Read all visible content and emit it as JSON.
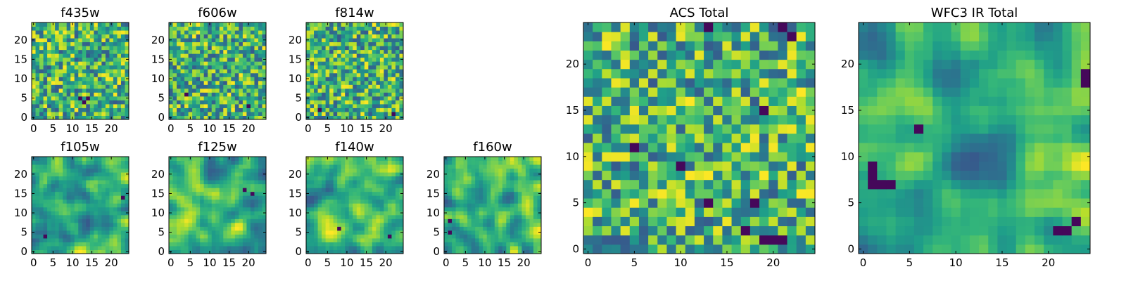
{
  "chart_data": [
    {
      "type": "heatmap",
      "title": "f435w",
      "x_ticks": [
        0,
        5,
        10,
        15,
        20
      ],
      "y_ticks": [
        0,
        5,
        10,
        15,
        20
      ],
      "xlim": [
        -0.5,
        24.5
      ],
      "ylim": [
        -0.5,
        24.5
      ],
      "grid_size": 25,
      "colormap": "viridis",
      "smoothness": 0,
      "seed": 11,
      "dark_spots": [
        [
          12,
          5
        ],
        [
          13,
          4
        ],
        [
          14,
          5
        ]
      ]
    },
    {
      "type": "heatmap",
      "title": "f606w",
      "x_ticks": [
        0,
        5,
        10,
        15,
        20
      ],
      "y_ticks": [
        0,
        5,
        10,
        15,
        20
      ],
      "xlim": [
        -0.5,
        24.5
      ],
      "ylim": [
        -0.5,
        24.5
      ],
      "grid_size": 25,
      "colormap": "viridis",
      "smoothness": 0,
      "seed": 23,
      "dark_spots": [
        [
          4,
          6
        ],
        [
          20,
          3
        ]
      ]
    },
    {
      "type": "heatmap",
      "title": "f814w",
      "x_ticks": [
        0,
        5,
        10,
        15,
        20
      ],
      "y_ticks": [
        0,
        5,
        10,
        15,
        20
      ],
      "xlim": [
        -0.5,
        24.5
      ],
      "ylim": [
        -0.5,
        24.5
      ],
      "grid_size": 25,
      "colormap": "viridis",
      "smoothness": 0,
      "seed": 37,
      "dark_spots": [
        [
          3,
          2
        ],
        [
          22,
          1
        ]
      ]
    },
    {
      "type": "heatmap",
      "title": "f105w",
      "x_ticks": [
        0,
        5,
        10,
        15,
        20
      ],
      "y_ticks": [
        0,
        5,
        10,
        15,
        20
      ],
      "xlim": [
        -0.5,
        24.5
      ],
      "ylim": [
        -0.5,
        24.5
      ],
      "grid_size": 25,
      "colormap": "viridis",
      "smoothness": 1,
      "seed": 41,
      "dark_spots": [
        [
          3,
          4
        ],
        [
          23,
          14
        ]
      ]
    },
    {
      "type": "heatmap",
      "title": "f125w",
      "x_ticks": [
        0,
        5,
        10,
        15,
        20
      ],
      "y_ticks": [
        0,
        5,
        10,
        15,
        20
      ],
      "xlim": [
        -0.5,
        24.5
      ],
      "ylim": [
        -0.5,
        24.5
      ],
      "grid_size": 25,
      "colormap": "viridis",
      "smoothness": 1,
      "seed": 53,
      "dark_spots": [
        [
          19,
          16
        ],
        [
          21,
          15
        ]
      ]
    },
    {
      "type": "heatmap",
      "title": "f140w",
      "x_ticks": [
        0,
        5,
        10,
        15,
        20
      ],
      "y_ticks": [
        0,
        5,
        10,
        15,
        20
      ],
      "xlim": [
        -0.5,
        24.5
      ],
      "ylim": [
        -0.5,
        24.5
      ],
      "grid_size": 25,
      "colormap": "viridis",
      "smoothness": 1,
      "seed": 67,
      "dark_spots": [
        [
          8,
          6
        ],
        [
          21,
          4
        ]
      ]
    },
    {
      "type": "heatmap",
      "title": "f160w",
      "x_ticks": [
        0,
        5,
        10,
        15,
        20
      ],
      "y_ticks": [
        0,
        5,
        10,
        15,
        20
      ],
      "xlim": [
        -0.5,
        24.5
      ],
      "ylim": [
        -0.5,
        24.5
      ],
      "grid_size": 25,
      "colormap": "viridis",
      "smoothness": 1,
      "seed": 79,
      "dark_spots": [
        [
          1,
          8
        ],
        [
          1,
          5
        ]
      ]
    },
    {
      "type": "heatmap",
      "title": "ACS Total",
      "x_ticks": [
        0,
        5,
        10,
        15,
        20
      ],
      "y_ticks": [
        0,
        5,
        10,
        15,
        20
      ],
      "xlim": [
        -0.5,
        24.5
      ],
      "ylim": [
        -0.5,
        24.5
      ],
      "grid_size": 25,
      "colormap": "viridis",
      "smoothness": 0,
      "seed": 97,
      "dark_spots": [
        [
          13,
          24
        ],
        [
          21,
          24
        ],
        [
          22,
          23
        ],
        [
          5,
          11
        ],
        [
          10,
          9
        ],
        [
          19,
          15
        ],
        [
          13,
          5
        ],
        [
          18,
          5
        ],
        [
          17,
          2
        ],
        [
          19,
          1
        ],
        [
          20,
          1
        ],
        [
          21,
          1
        ]
      ]
    },
    {
      "type": "heatmap",
      "title": "WFC3 IR Total",
      "x_ticks": [
        0,
        5,
        10,
        15,
        20
      ],
      "y_ticks": [
        0,
        5,
        10,
        15,
        20
      ],
      "xlim": [
        -0.5,
        24.5
      ],
      "ylim": [
        -0.5,
        24.5
      ],
      "grid_size": 25,
      "colormap": "viridis",
      "smoothness": 1,
      "seed": 109,
      "dark_spots": [
        [
          1,
          9
        ],
        [
          1,
          8
        ],
        [
          2,
          7
        ],
        [
          3,
          7
        ],
        [
          1,
          7
        ],
        [
          21,
          2
        ],
        [
          22,
          2
        ],
        [
          23,
          3
        ],
        [
          24,
          19
        ],
        [
          24,
          18
        ],
        [
          6,
          13
        ]
      ]
    }
  ]
}
